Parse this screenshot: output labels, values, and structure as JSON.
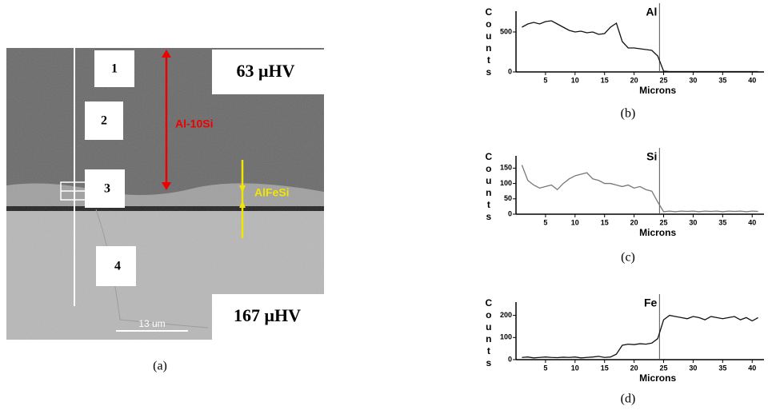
{
  "figure": {
    "labels": [
      "1",
      "2",
      "3",
      "4"
    ],
    "hardness_top": "63 μHV",
    "hardness_bottom": "167 μHV",
    "layer_1": "Al-10Si",
    "layer_2": "AlFeSi",
    "scale_bar": "13 um",
    "caption": "(a)"
  },
  "chart_data": [
    {
      "type": "line",
      "label": "Al",
      "caption": "(b)",
      "x_label": "Microns",
      "y_label": "Counts",
      "vline": 24.3,
      "x": [
        1,
        2,
        3,
        4,
        5,
        6,
        7,
        8,
        9,
        10,
        11,
        12,
        13,
        14,
        15,
        16,
        17,
        18,
        19,
        20,
        21,
        22,
        23,
        24,
        25,
        26,
        27,
        28,
        29,
        30,
        31,
        32,
        33,
        34,
        35,
        36,
        37,
        38,
        39,
        40,
        41
      ],
      "series": [
        {
          "name": "Al",
          "color": "#111111",
          "values": [
            560,
            600,
            620,
            600,
            630,
            640,
            600,
            560,
            520,
            500,
            510,
            490,
            500,
            470,
            480,
            560,
            610,
            380,
            300,
            300,
            290,
            280,
            270,
            200,
            10,
            5,
            5,
            5,
            5,
            5,
            5,
            5,
            5,
            5,
            5,
            5,
            5,
            5,
            5,
            5,
            5
          ]
        }
      ],
      "xlim": [
        0,
        42
      ],
      "xticks": [
        5,
        10,
        15,
        20,
        25,
        30,
        35,
        40
      ],
      "ylim": [
        0,
        760
      ],
      "yticks": [
        0,
        500
      ]
    },
    {
      "type": "line",
      "label": "Si",
      "caption": "(c)",
      "x_label": "Microns",
      "y_label": "Counts",
      "vline": 24.3,
      "x": [
        1,
        2,
        3,
        4,
        5,
        6,
        7,
        8,
        9,
        10,
        11,
        12,
        13,
        14,
        15,
        16,
        17,
        18,
        19,
        20,
        21,
        22,
        23,
        24,
        25,
        26,
        27,
        28,
        29,
        30,
        31,
        32,
        33,
        34,
        35,
        36,
        37,
        38,
        39,
        40,
        41
      ],
      "series": [
        {
          "name": "Si",
          "color": "#777777",
          "values": [
            160,
            110,
            95,
            85,
            90,
            95,
            80,
            100,
            115,
            125,
            130,
            135,
            115,
            110,
            100,
            100,
            95,
            90,
            95,
            85,
            90,
            80,
            75,
            40,
            8,
            10,
            8,
            10,
            9,
            10,
            8,
            10,
            9,
            10,
            8,
            10,
            9,
            10,
            8,
            10,
            9
          ]
        }
      ],
      "xlim": [
        0,
        42
      ],
      "xticks": [
        5,
        10,
        15,
        20,
        25,
        30,
        35,
        40
      ],
      "ylim": [
        0,
        190
      ],
      "yticks": [
        0,
        50,
        100,
        150
      ]
    },
    {
      "type": "line",
      "label": "Fe",
      "caption": "(d)",
      "x_label": "Microns",
      "y_label": "Counts",
      "vline": 24.3,
      "x": [
        1,
        2,
        3,
        4,
        5,
        6,
        7,
        8,
        9,
        10,
        11,
        12,
        13,
        14,
        15,
        16,
        17,
        18,
        19,
        20,
        21,
        22,
        23,
        24,
        25,
        26,
        27,
        28,
        29,
        30,
        31,
        32,
        33,
        34,
        35,
        36,
        37,
        38,
        39,
        40,
        41
      ],
      "series": [
        {
          "name": "Fe",
          "color": "#111111",
          "values": [
            10,
            12,
            8,
            10,
            12,
            10,
            9,
            11,
            10,
            12,
            8,
            10,
            12,
            15,
            10,
            12,
            25,
            65,
            70,
            68,
            72,
            70,
            75,
            95,
            180,
            200,
            195,
            190,
            185,
            195,
            190,
            180,
            195,
            190,
            185,
            190,
            195,
            180,
            190,
            175,
            190
          ]
        }
      ],
      "xlim": [
        0,
        42
      ],
      "xticks": [
        5,
        10,
        15,
        20,
        25,
        30,
        35,
        40
      ],
      "ylim": [
        0,
        260
      ],
      "yticks": [
        0,
        100,
        200
      ]
    }
  ]
}
